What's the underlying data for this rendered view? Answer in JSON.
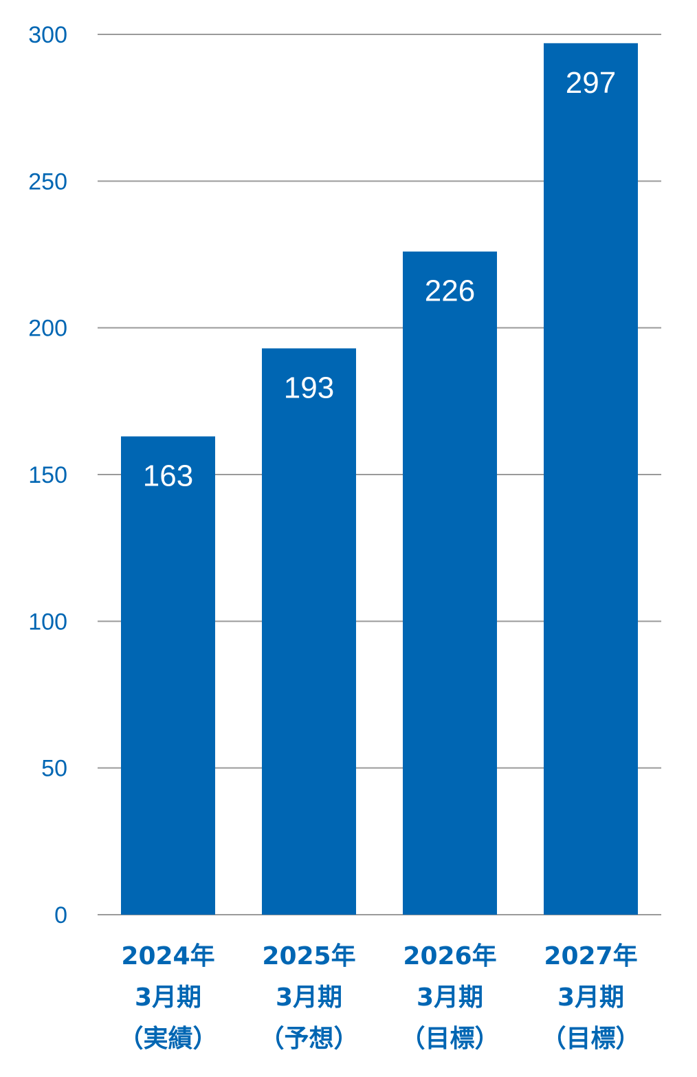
{
  "chart_data": {
    "type": "bar",
    "categories": [
      [
        "2024年",
        "3月期",
        "（実績）"
      ],
      [
        "2025年",
        "3月期",
        "（予想）"
      ],
      [
        "2026年",
        "3月期",
        "（目標）"
      ],
      [
        "2027年",
        "3月期",
        "（目標）"
      ]
    ],
    "values": [
      163,
      193,
      226,
      297
    ],
    "data_labels": [
      "163",
      "193",
      "226",
      "297"
    ],
    "y_ticks": [
      "0",
      "50",
      "100",
      "150",
      "200",
      "250",
      "300"
    ],
    "ylim": [
      0,
      300
    ],
    "grid": true,
    "legend": "none",
    "title": "",
    "xlabel": "",
    "ylabel": ""
  },
  "colors": {
    "bar": "#0066b3",
    "axis_text": "#0066b3",
    "grid": "#9a9a9a",
    "bar_label": "#ffffff"
  }
}
